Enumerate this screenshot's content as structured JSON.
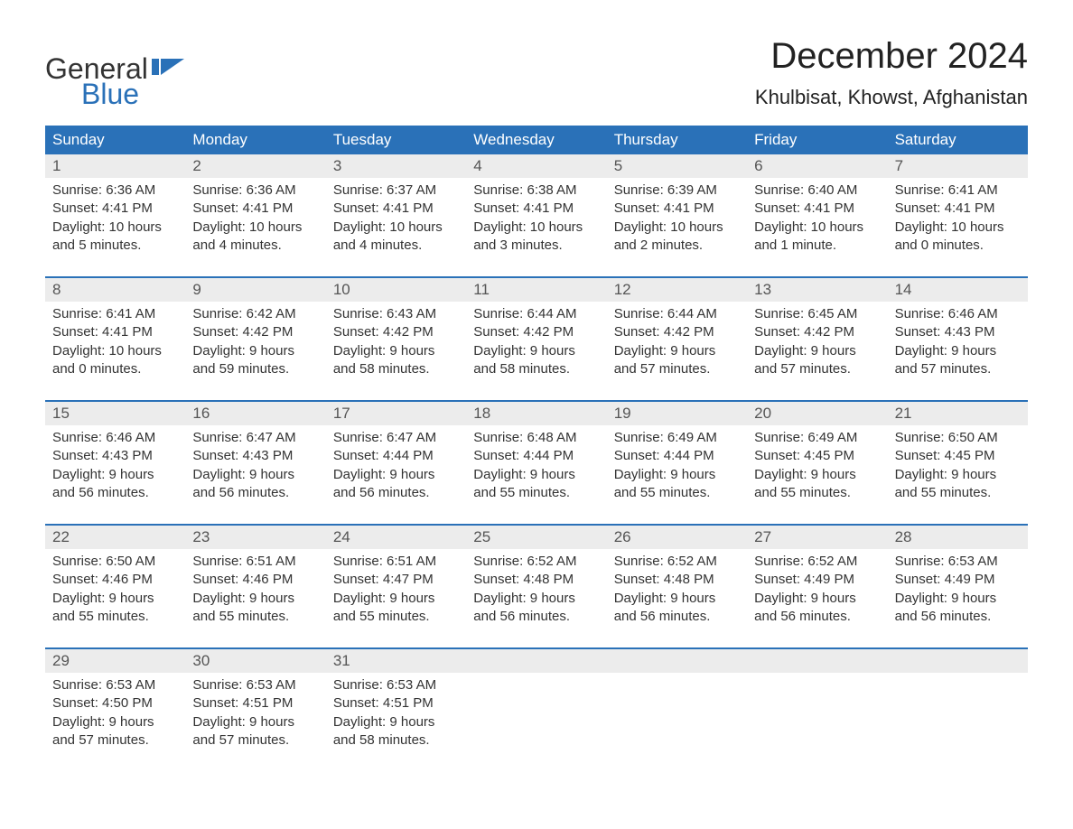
{
  "logo": {
    "text_general": "General",
    "text_blue": "Blue",
    "flag_color": "#2a71b8"
  },
  "title": "December 2024",
  "location": "Khulbisat, Khowst, Afghanistan",
  "colors": {
    "header_bg": "#2a71b8",
    "header_text": "#ffffff",
    "daynum_bg": "#ececec",
    "row_divider": "#2a71b8",
    "body_text": "#333333",
    "background": "#ffffff"
  },
  "typography": {
    "title_fontsize": 40,
    "location_fontsize": 22,
    "weekday_fontsize": 17,
    "daynum_fontsize": 17,
    "cell_fontsize": 15,
    "font_family": "Arial"
  },
  "weekdays": [
    "Sunday",
    "Monday",
    "Tuesday",
    "Wednesday",
    "Thursday",
    "Friday",
    "Saturday"
  ],
  "weeks": [
    [
      {
        "d": "1",
        "sr": "6:36 AM",
        "ss": "4:41 PM",
        "dl1": "10 hours",
        "dl2": "and 5 minutes."
      },
      {
        "d": "2",
        "sr": "6:36 AM",
        "ss": "4:41 PM",
        "dl1": "10 hours",
        "dl2": "and 4 minutes."
      },
      {
        "d": "3",
        "sr": "6:37 AM",
        "ss": "4:41 PM",
        "dl1": "10 hours",
        "dl2": "and 4 minutes."
      },
      {
        "d": "4",
        "sr": "6:38 AM",
        "ss": "4:41 PM",
        "dl1": "10 hours",
        "dl2": "and 3 minutes."
      },
      {
        "d": "5",
        "sr": "6:39 AM",
        "ss": "4:41 PM",
        "dl1": "10 hours",
        "dl2": "and 2 minutes."
      },
      {
        "d": "6",
        "sr": "6:40 AM",
        "ss": "4:41 PM",
        "dl1": "10 hours",
        "dl2": "and 1 minute."
      },
      {
        "d": "7",
        "sr": "6:41 AM",
        "ss": "4:41 PM",
        "dl1": "10 hours",
        "dl2": "and 0 minutes."
      }
    ],
    [
      {
        "d": "8",
        "sr": "6:41 AM",
        "ss": "4:41 PM",
        "dl1": "10 hours",
        "dl2": "and 0 minutes."
      },
      {
        "d": "9",
        "sr": "6:42 AM",
        "ss": "4:42 PM",
        "dl1": "9 hours",
        "dl2": "and 59 minutes."
      },
      {
        "d": "10",
        "sr": "6:43 AM",
        "ss": "4:42 PM",
        "dl1": "9 hours",
        "dl2": "and 58 minutes."
      },
      {
        "d": "11",
        "sr": "6:44 AM",
        "ss": "4:42 PM",
        "dl1": "9 hours",
        "dl2": "and 58 minutes."
      },
      {
        "d": "12",
        "sr": "6:44 AM",
        "ss": "4:42 PM",
        "dl1": "9 hours",
        "dl2": "and 57 minutes."
      },
      {
        "d": "13",
        "sr": "6:45 AM",
        "ss": "4:42 PM",
        "dl1": "9 hours",
        "dl2": "and 57 minutes."
      },
      {
        "d": "14",
        "sr": "6:46 AM",
        "ss": "4:43 PM",
        "dl1": "9 hours",
        "dl2": "and 57 minutes."
      }
    ],
    [
      {
        "d": "15",
        "sr": "6:46 AM",
        "ss": "4:43 PM",
        "dl1": "9 hours",
        "dl2": "and 56 minutes."
      },
      {
        "d": "16",
        "sr": "6:47 AM",
        "ss": "4:43 PM",
        "dl1": "9 hours",
        "dl2": "and 56 minutes."
      },
      {
        "d": "17",
        "sr": "6:47 AM",
        "ss": "4:44 PM",
        "dl1": "9 hours",
        "dl2": "and 56 minutes."
      },
      {
        "d": "18",
        "sr": "6:48 AM",
        "ss": "4:44 PM",
        "dl1": "9 hours",
        "dl2": "and 55 minutes."
      },
      {
        "d": "19",
        "sr": "6:49 AM",
        "ss": "4:44 PM",
        "dl1": "9 hours",
        "dl2": "and 55 minutes."
      },
      {
        "d": "20",
        "sr": "6:49 AM",
        "ss": "4:45 PM",
        "dl1": "9 hours",
        "dl2": "and 55 minutes."
      },
      {
        "d": "21",
        "sr": "6:50 AM",
        "ss": "4:45 PM",
        "dl1": "9 hours",
        "dl2": "and 55 minutes."
      }
    ],
    [
      {
        "d": "22",
        "sr": "6:50 AM",
        "ss": "4:46 PM",
        "dl1": "9 hours",
        "dl2": "and 55 minutes."
      },
      {
        "d": "23",
        "sr": "6:51 AM",
        "ss": "4:46 PM",
        "dl1": "9 hours",
        "dl2": "and 55 minutes."
      },
      {
        "d": "24",
        "sr": "6:51 AM",
        "ss": "4:47 PM",
        "dl1": "9 hours",
        "dl2": "and 55 minutes."
      },
      {
        "d": "25",
        "sr": "6:52 AM",
        "ss": "4:48 PM",
        "dl1": "9 hours",
        "dl2": "and 56 minutes."
      },
      {
        "d": "26",
        "sr": "6:52 AM",
        "ss": "4:48 PM",
        "dl1": "9 hours",
        "dl2": "and 56 minutes."
      },
      {
        "d": "27",
        "sr": "6:52 AM",
        "ss": "4:49 PM",
        "dl1": "9 hours",
        "dl2": "and 56 minutes."
      },
      {
        "d": "28",
        "sr": "6:53 AM",
        "ss": "4:49 PM",
        "dl1": "9 hours",
        "dl2": "and 56 minutes."
      }
    ],
    [
      {
        "d": "29",
        "sr": "6:53 AM",
        "ss": "4:50 PM",
        "dl1": "9 hours",
        "dl2": "and 57 minutes."
      },
      {
        "d": "30",
        "sr": "6:53 AM",
        "ss": "4:51 PM",
        "dl1": "9 hours",
        "dl2": "and 57 minutes."
      },
      {
        "d": "31",
        "sr": "6:53 AM",
        "ss": "4:51 PM",
        "dl1": "9 hours",
        "dl2": "and 58 minutes."
      },
      null,
      null,
      null,
      null
    ]
  ],
  "labels": {
    "sunrise_prefix": "Sunrise: ",
    "sunset_prefix": "Sunset: ",
    "daylight_prefix": "Daylight: "
  }
}
